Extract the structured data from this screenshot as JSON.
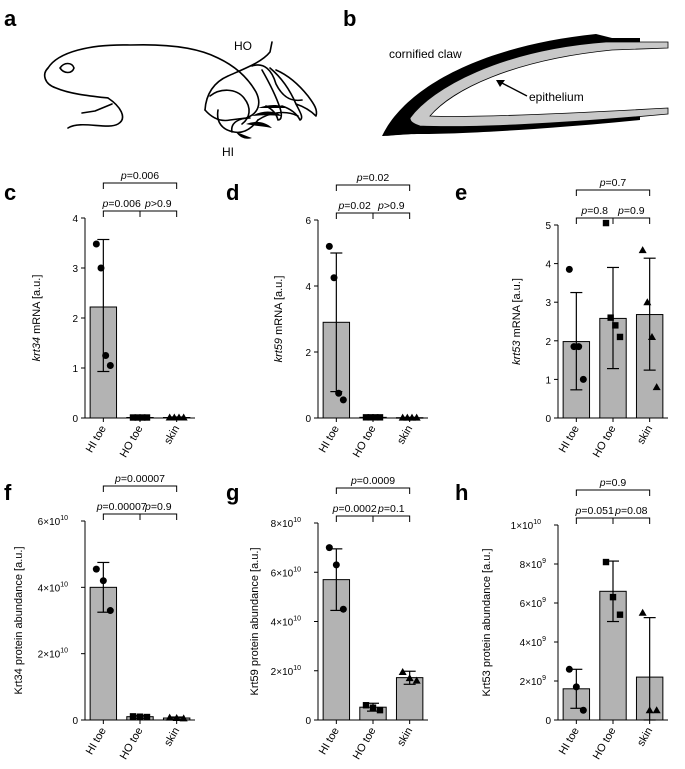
{
  "illustrations": {
    "a": {
      "letter": "a",
      "labels": [
        "HO",
        "HI"
      ]
    },
    "b": {
      "letter": "b",
      "labels": [
        "cornified claw",
        "epithelium"
      ]
    }
  },
  "chart_data": [
    {
      "letter": "c",
      "type": "bar",
      "ylabel_italic": "krt34",
      "ylabel_rest": " mRNA [a.u.]",
      "categories": [
        "HI toe",
        "HO toe",
        "skin"
      ],
      "values": [
        2.22,
        0.01,
        0.01
      ],
      "err_low": [
        0.93,
        0.0,
        0.0
      ],
      "err_high": [
        3.57,
        0.02,
        0.02
      ],
      "markers": [
        "circle",
        "square",
        "triangle"
      ],
      "points": [
        [
          3.48,
          3.0,
          1.25,
          1.05
        ],
        [
          0.01,
          0.01,
          0.01,
          0.01
        ],
        [
          0.01,
          0.01,
          0.01,
          0.01
        ]
      ],
      "ylim": [
        0,
        4
      ],
      "ticks": [
        "0",
        "1",
        "2",
        "3",
        "4"
      ],
      "tick_values": [
        0,
        1,
        2,
        3,
        4
      ],
      "comparisons": [
        {
          "from": 0,
          "to": 1,
          "label": "p=0.006",
          "level": 1
        },
        {
          "from": 1,
          "to": 2,
          "label": "p>0.9",
          "level": 1
        },
        {
          "from": 0,
          "to": 2,
          "label": "p=0.006",
          "level": 2
        }
      ]
    },
    {
      "letter": "d",
      "type": "bar",
      "ylabel_italic": "krt59",
      "ylabel_rest": " mRNA [a.u.]",
      "categories": [
        "HI toe",
        "HO toe",
        "skin"
      ],
      "values": [
        2.9,
        0.02,
        0.01
      ],
      "err_low": [
        0.8,
        0.0,
        0.0
      ],
      "err_high": [
        5.0,
        0.04,
        0.02
      ],
      "markers": [
        "circle",
        "square",
        "triangle"
      ],
      "points": [
        [
          5.2,
          4.25,
          0.75,
          0.55
        ],
        [
          0.02,
          0.02,
          0.02,
          0.02
        ],
        [
          0.01,
          0.01,
          0.01,
          0.01
        ]
      ],
      "ylim": [
        0,
        6
      ],
      "ticks": [
        "0",
        "2",
        "4",
        "6"
      ],
      "tick_values": [
        0,
        2,
        4,
        6
      ],
      "comparisons": [
        {
          "from": 0,
          "to": 1,
          "label": "p=0.02",
          "level": 1
        },
        {
          "from": 1,
          "to": 2,
          "label": "p>0.9",
          "level": 1
        },
        {
          "from": 0,
          "to": 2,
          "label": "p=0.02",
          "level": 2
        }
      ]
    },
    {
      "letter": "e",
      "type": "bar",
      "ylabel_italic": "krt53",
      "ylabel_rest": " mRNA [a.u.]",
      "categories": [
        "HI toe",
        "HO toe",
        "skin"
      ],
      "values": [
        1.98,
        2.58,
        2.68
      ],
      "err_low": [
        0.73,
        1.28,
        1.24
      ],
      "err_high": [
        3.25,
        3.9,
        4.14
      ],
      "markers": [
        "circle",
        "square",
        "triangle"
      ],
      "points": [
        [
          3.85,
          1.85,
          1.85,
          1.0
        ],
        [
          5.05,
          2.6,
          2.4,
          2.1
        ],
        [
          4.35,
          3.0,
          2.1,
          0.8
        ]
      ],
      "ylim": [
        0,
        5
      ],
      "ticks": [
        "0",
        "1",
        "2",
        "3",
        "4",
        "5"
      ],
      "tick_values": [
        0,
        1,
        2,
        3,
        4,
        5
      ],
      "comparisons": [
        {
          "from": 0,
          "to": 1,
          "label": "p=0.8",
          "level": 1
        },
        {
          "from": 1,
          "to": 2,
          "label": "p=0.9",
          "level": 1
        },
        {
          "from": 0,
          "to": 2,
          "label": "p=0.7",
          "level": 2
        }
      ]
    },
    {
      "letter": "f",
      "type": "bar",
      "ylabel_italic": "",
      "ylabel_rest": "Krt34 protein abundance [a.u.]",
      "categories": [
        "HI toe",
        "HO toe",
        "skin"
      ],
      "values": [
        40000000000.0,
        1000000000.0,
        600000000.0
      ],
      "err_low": [
        32500000000.0,
        500000000.0,
        200000000.0
      ],
      "err_high": [
        47500000000.0,
        1400000000.0,
        900000000.0
      ],
      "markers": [
        "circle",
        "square",
        "triangle"
      ],
      "points": [
        [
          45500000000.0,
          42000000000.0,
          33000000000.0
        ],
        [
          1100000000.0,
          1000000000.0,
          900000000.0
        ],
        [
          700000000.0,
          600000000.0,
          500000000.0
        ]
      ],
      "ylim": [
        0,
        60000000000.0
      ],
      "ticks": [
        "0",
        "2×10",
        "4×10",
        "6×10"
      ],
      "tick_exp": [
        "",
        "10",
        "10",
        "10"
      ],
      "tick_values": [
        0,
        20000000000.0,
        40000000000.0,
        60000000000.0
      ],
      "comparisons": [
        {
          "from": 0,
          "to": 1,
          "label": "p=0.00007",
          "level": 1
        },
        {
          "from": 1,
          "to": 2,
          "label": "p=0.9",
          "level": 1
        },
        {
          "from": 0,
          "to": 2,
          "label": "p=0.00007",
          "level": 2
        }
      ]
    },
    {
      "letter": "g",
      "type": "bar",
      "ylabel_italic": "",
      "ylabel_rest": "Krt59 protein abundance [a.u.]",
      "categories": [
        "HI toe",
        "HO toe",
        "skin"
      ],
      "values": [
        57000000000.0,
        5200000000.0,
        17200000000.0
      ],
      "err_low": [
        44500000000.0,
        3600000000.0,
        14500000000.0
      ],
      "err_high": [
        69500000000.0,
        6800000000.0,
        19800000000.0
      ],
      "markers": [
        "circle",
        "square",
        "triangle"
      ],
      "points": [
        [
          70000000000.0,
          63000000000.0,
          45000000000.0
        ],
        [
          6000000000.0,
          5000000000.0,
          4000000000.0
        ],
        [
          19500000000.0,
          17000000000.0,
          16000000000.0
        ]
      ],
      "ylim": [
        0,
        80000000000.0
      ],
      "ticks": [
        "0",
        "2×10",
        "4×10",
        "6×10",
        "8×10"
      ],
      "tick_exp": [
        "",
        "10",
        "10",
        "10",
        "10"
      ],
      "tick_values": [
        0,
        20000000000.0,
        40000000000.0,
        60000000000.0,
        80000000000.0
      ],
      "comparisons": [
        {
          "from": 0,
          "to": 1,
          "label": "p=0.0002",
          "level": 1
        },
        {
          "from": 1,
          "to": 2,
          "label": "p=0.1",
          "level": 1
        },
        {
          "from": 0,
          "to": 2,
          "label": "p=0.0009",
          "level": 2
        }
      ]
    },
    {
      "letter": "h",
      "type": "bar",
      "ylabel_italic": "",
      "ylabel_rest": "Krt53 protein abundance [a.u.]",
      "categories": [
        "HI toe",
        "HO toe",
        "skin"
      ],
      "values": [
        1600000000.0,
        6600000000.0,
        2200000000.0
      ],
      "err_low": [
        600000000.0,
        5050000000.0,
        0
      ],
      "err_high": [
        2600000000.0,
        8150000000.0,
        5250000000.0
      ],
      "markers": [
        "circle",
        "square",
        "triangle"
      ],
      "points": [
        [
          2600000000.0,
          1700000000.0,
          500000000.0
        ],
        [
          8100000000.0,
          6300000000.0,
          5400000000.0
        ],
        [
          5500000000.0,
          500000000.0,
          500000000.0
        ]
      ],
      "ylim": [
        0,
        10000000000.0
      ],
      "ticks": [
        "0",
        "2×10",
        "4×10",
        "6×10",
        "8×10",
        "1×10"
      ],
      "tick_exp": [
        "",
        "9",
        "9",
        "9",
        "9",
        "10"
      ],
      "tick_values": [
        0,
        2000000000.0,
        4000000000.0,
        6000000000.0,
        8000000000.0,
        10000000000.0
      ],
      "comparisons": [
        {
          "from": 0,
          "to": 1,
          "label": "p=0.051",
          "level": 1
        },
        {
          "from": 1,
          "to": 2,
          "label": "p=0.08",
          "level": 1
        },
        {
          "from": 0,
          "to": 2,
          "label": "p=0.9",
          "level": 2
        }
      ]
    }
  ]
}
